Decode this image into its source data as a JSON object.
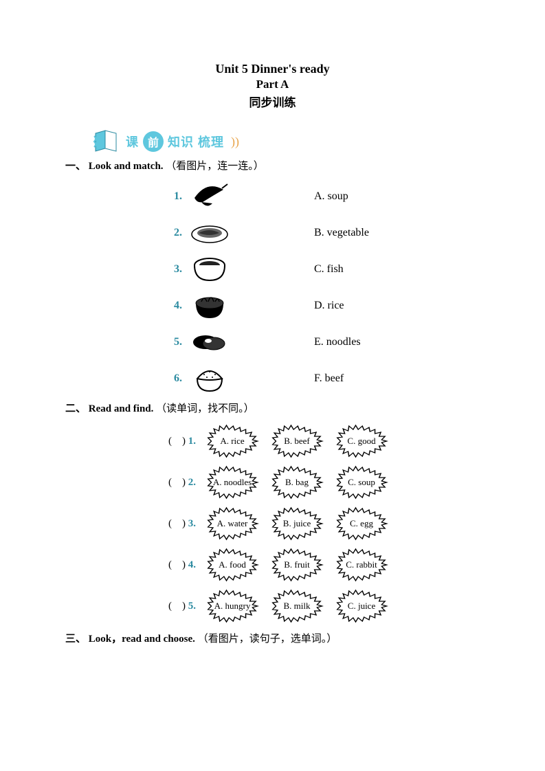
{
  "title": {
    "line1": "Unit 5    Dinner's ready",
    "line2": "Part A",
    "line3": "同步训练"
  },
  "banner": {
    "pre": "课",
    "circle": "前",
    "mid": "知识",
    "tail": "梳理"
  },
  "sections": {
    "one": {
      "num": "一、",
      "en": "Look and match.",
      "cn": "（看图片，连一连。）"
    },
    "two": {
      "num": "二、",
      "en": "Read and find.",
      "cn": "（读单词，找不同。）"
    },
    "three": {
      "num": "三、",
      "en": "Look，read and choose.",
      "cn": "（看图片，读句子，选单词。）"
    }
  },
  "match": {
    "items": [
      {
        "num": "1.",
        "answer": "A. soup"
      },
      {
        "num": "2.",
        "answer": "B. vegetable"
      },
      {
        "num": "3.",
        "answer": "C. fish"
      },
      {
        "num": "4.",
        "answer": "D. rice"
      },
      {
        "num": "5.",
        "answer": "E. noodles"
      },
      {
        "num": "6.",
        "answer": "F. beef"
      }
    ]
  },
  "find": {
    "rows": [
      {
        "num": "1.",
        "a": "A. rice",
        "b": "B. beef",
        "c": "C. good"
      },
      {
        "num": "2.",
        "a": "A. noodles",
        "b": "B. bag",
        "c": "C. soup"
      },
      {
        "num": "3.",
        "a": "A. water",
        "b": "B. juice",
        "c": "C. egg"
      },
      {
        "num": "4.",
        "a": "A. food",
        "b": "B. fruit",
        "c": "C. rabbit"
      },
      {
        "num": "5.",
        "a": "A. hungry",
        "b": "B. milk",
        "c": "C. juice"
      }
    ]
  },
  "colors": {
    "accent_teal": "#2a8aa0",
    "banner_cyan": "#5ec7de",
    "wave_orange": "#e8a44a",
    "text_black": "#000000",
    "background": "#ffffff"
  }
}
